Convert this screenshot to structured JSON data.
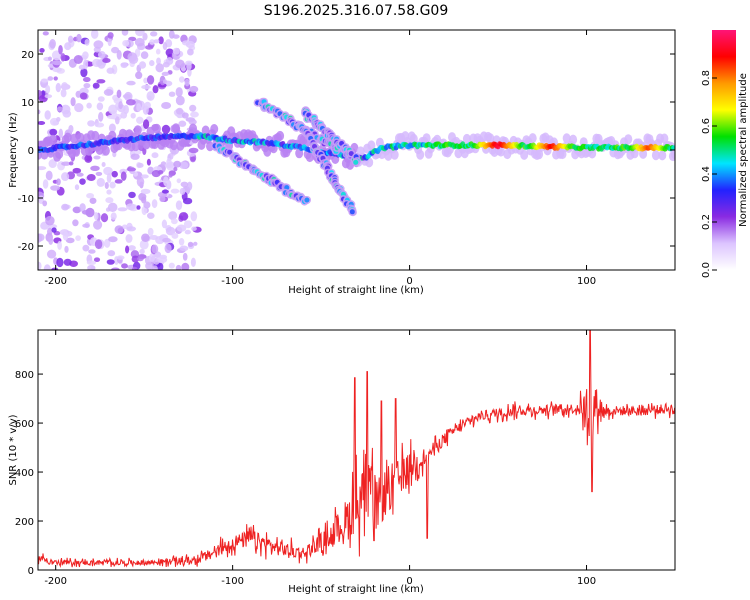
{
  "title": "S196.2025.316.07.58.G09",
  "chart_data": [
    {
      "type": "heatmap",
      "name": "spectrogram",
      "xlabel": "Height of straight line (km)",
      "ylabel": "Frequency (Hz)",
      "xlim": [
        -210,
        150
      ],
      "ylim": [
        -25,
        25
      ],
      "xticks": [
        -200,
        -100,
        0,
        100
      ],
      "yticks": [
        -20,
        -10,
        0,
        10,
        20
      ],
      "colorbar": {
        "label": "Normalized spectral amplitude",
        "range": [
          0,
          1
        ],
        "ticks": [
          0.0,
          0.2,
          0.4,
          0.6,
          0.8
        ],
        "colors": [
          "#ffffff",
          "#dcc4ff",
          "#8a2be2",
          "#2222ff",
          "#00e5ff",
          "#00e000",
          "#ffff00",
          "#ff9900",
          "#ff0000",
          "#ff1477"
        ]
      },
      "features": {
        "scatter_region": {
          "x": [
            -210,
            -120
          ],
          "freq": [
            -25,
            25
          ]
        },
        "base_trace": [
          {
            "x": -210,
            "f": 0.0
          },
          {
            "x": -150,
            "f": 2.5
          },
          {
            "x": -120,
            "f": 3.0
          },
          {
            "x": -100,
            "f": 2.0
          },
          {
            "x": -80,
            "f": 1.5
          },
          {
            "x": -60,
            "f": 0.5
          },
          {
            "x": -40,
            "f": -1.0
          },
          {
            "x": -25,
            "f": -1.5
          },
          {
            "x": -15,
            "f": 0.5
          },
          {
            "x": 0,
            "f": 1.0
          },
          {
            "x": 50,
            "f": 1.0
          },
          {
            "x": 100,
            "f": 0.5
          },
          {
            "x": 150,
            "f": 0.5
          }
        ],
        "streaks": [
          {
            "x0": -110,
            "f0": 1.0,
            "x1": -58,
            "f1": -11.0
          },
          {
            "x0": -85,
            "f0": 10.0,
            "x1": -40,
            "f1": 0.0
          },
          {
            "x0": -60,
            "f0": 4.5,
            "x1": -32,
            "f1": -13.0
          },
          {
            "x0": -60,
            "f0": 8.0,
            "x1": -30,
            "f1": -2.0
          }
        ],
        "peaks": [
          {
            "x": 50,
            "f": 1.0,
            "amp": 0.95
          },
          {
            "x": 80,
            "f": 1.5,
            "amp": 0.9
          },
          {
            "x": 135,
            "f": 0.5,
            "amp": 0.85
          }
        ]
      }
    },
    {
      "type": "line",
      "name": "snr",
      "xlabel": "Height of straight line (km)",
      "ylabel": "SNR (10 * v/v)",
      "xlim": [
        -210,
        150
      ],
      "ylim": [
        0,
        980
      ],
      "xticks": [
        -200,
        -100,
        0,
        100
      ],
      "yticks": [
        0,
        200,
        400,
        600,
        800
      ],
      "line_color": "#ee2222",
      "x": [
        -210,
        -200,
        -150,
        -120,
        -100,
        -90,
        -75,
        -60,
        -45,
        -35,
        -28,
        -22,
        -18,
        -12,
        -5,
        0,
        10,
        25,
        40,
        60,
        80,
        95,
        100,
        103,
        105,
        110,
        130,
        150
      ],
      "y": [
        50,
        30,
        30,
        40,
        110,
        130,
        90,
        70,
        140,
        210,
        300,
        330,
        270,
        330,
        380,
        420,
        470,
        570,
        630,
        650,
        655,
        660,
        660,
        600,
        680,
        650,
        650,
        660
      ],
      "spread": [
        30,
        20,
        20,
        30,
        60,
        70,
        60,
        50,
        80,
        180,
        250,
        200,
        200,
        200,
        150,
        120,
        60,
        40,
        40,
        40,
        40,
        40,
        150,
        300,
        150,
        40,
        40,
        40
      ],
      "spikes": [
        {
          "x": -31,
          "y": 785
        },
        {
          "x": -24,
          "y": 810
        },
        {
          "x": -20,
          "y": 120
        },
        {
          "x": -16,
          "y": 690
        },
        {
          "x": -8,
          "y": 700
        },
        {
          "x": 10,
          "y": 130
        },
        {
          "x": 102,
          "y": 985
        },
        {
          "x": 103,
          "y": 320
        }
      ]
    }
  ]
}
